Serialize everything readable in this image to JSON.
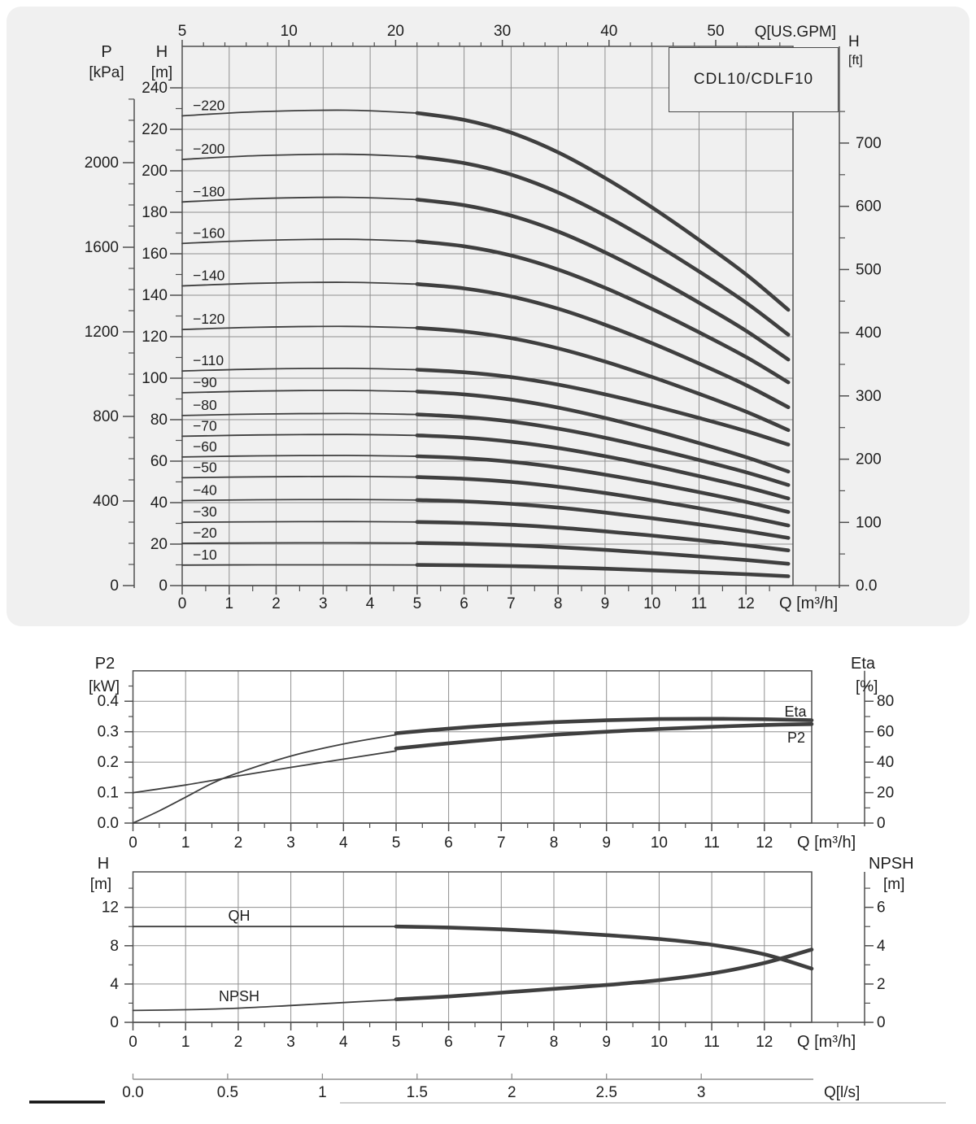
{
  "colors": {
    "page_bg": "#ffffff",
    "panel_bg": "#f0f0f0",
    "grid": "#8f8f8f",
    "axis": "#4f4f4f",
    "curve": "#3f3f3f",
    "text": "#1f1f1f",
    "footer_rule": "#b0b0b0",
    "footer_bar": "#111111"
  },
  "chart_data": [
    {
      "type": "line",
      "id": "multistage-qh",
      "title": "CDL10/CDLF10",
      "xlabel": "Q [m³/h]",
      "top_axis_label": "Q[US.GPM]",
      "x_ticks": [
        0,
        1,
        2,
        3,
        4,
        5,
        6,
        7,
        8,
        9,
        10,
        11,
        12
      ],
      "x_minor_step": 0.5,
      "xlim": [
        0,
        13
      ],
      "ylim_m": [
        0,
        260
      ],
      "grid_step_m": 20,
      "left_axis_pressure": {
        "name": "P",
        "unit": "[kPa]",
        "ticks": [
          0,
          400,
          800,
          1200,
          1600,
          2000
        ],
        "minor_step": 100,
        "axis_max": 2300
      },
      "left_axis_head": {
        "name": "H",
        "unit": "[m]",
        "label_step": 20,
        "minor_step": 10,
        "max_label": 240
      },
      "right_axis_feet": {
        "name": "H",
        "unit": "[ft]",
        "ticks": [
          "0.0",
          "100",
          "200",
          "300",
          "400",
          "500",
          "600",
          "700"
        ],
        "minor_step_ft": 50
      },
      "top_axis_gpm": {
        "labels": [
          5,
          10,
          20,
          30,
          40,
          50
        ],
        "minor_step_gpm": 2,
        "minor_max_gpm": 56,
        "gpm_per_m3h": 4.4029
      },
      "curves": [
        {
          "label": "−220",
          "shutoff_m": 226.5,
          "end_m": 133
        },
        {
          "label": "−200",
          "shutoff_m": 205.5,
          "end_m": 121
        },
        {
          "label": "−180",
          "shutoff_m": 185.0,
          "end_m": 109
        },
        {
          "label": "−160",
          "shutoff_m": 165.0,
          "end_m": 98
        },
        {
          "label": "−140",
          "shutoff_m": 144.5,
          "end_m": 86
        },
        {
          "label": "−120",
          "shutoff_m": 123.5,
          "end_m": 75
        },
        {
          "label": "−110",
          "shutoff_m": 103.5,
          "end_m": 68
        },
        {
          "label": "−90",
          "shutoff_m": 93.0,
          "end_m": 55
        },
        {
          "label": "−80",
          "shutoff_m": 82.0,
          "end_m": 48.5
        },
        {
          "label": "−70",
          "shutoff_m": 72.0,
          "end_m": 42
        },
        {
          "label": "−60",
          "shutoff_m": 62.0,
          "end_m": 35.5
        },
        {
          "label": "−50",
          "shutoff_m": 52.0,
          "end_m": 29
        },
        {
          "label": "−40",
          "shutoff_m": 41.0,
          "end_m": 23
        },
        {
          "label": "−30",
          "shutoff_m": 30.5,
          "end_m": 17
        },
        {
          "label": "−20",
          "shutoff_m": 20.4,
          "end_m": 10.5
        },
        {
          "label": "−10",
          "shutoff_m": 9.9,
          "end_m": 4.5
        }
      ],
      "curve_shape": {
        "peak_q": 3.5,
        "peak_factor": 1.012,
        "q5_factor": 1.006,
        "thick_q": [
          5,
          6,
          7,
          8,
          9,
          10,
          11,
          12,
          12.9
        ],
        "droop_fractions": [
          0,
          0.035,
          0.1,
          0.2,
          0.33,
          0.48,
          0.645,
          0.82,
          1
        ]
      }
    },
    {
      "type": "line",
      "id": "power-efficiency",
      "xlabel": "Q [m³/h]",
      "x_ticks": [
        0,
        1,
        2,
        3,
        4,
        5,
        6,
        7,
        8,
        9,
        10,
        11,
        12
      ],
      "x_minor_step": 0.5,
      "xlim": [
        0,
        12.9
      ],
      "left_axis": {
        "name": "P2",
        "unit": "[kW]",
        "ticks": [
          "0.0",
          "0.1",
          "0.2",
          "0.3",
          "0.4"
        ],
        "minor_step": 0.05,
        "axis_max": 0.5
      },
      "right_axis": {
        "name": "Eta",
        "unit": "[%]",
        "ticks": [
          "0",
          "20",
          "40",
          "60",
          "80"
        ],
        "minor_step": 10
      },
      "series": [
        {
          "name": "P2",
          "axis": "left",
          "curve_label": "P2",
          "points_thin": [
            [
              0,
              0.1
            ],
            [
              1,
              0.125
            ],
            [
              2,
              0.155
            ],
            [
              3,
              0.183
            ],
            [
              4,
              0.21
            ],
            [
              5,
              0.237
            ]
          ],
          "points_thick": [
            [
              5,
              0.245
            ],
            [
              6,
              0.262
            ],
            [
              7,
              0.277
            ],
            [
              8,
              0.29
            ],
            [
              9,
              0.3
            ],
            [
              10,
              0.309
            ],
            [
              11,
              0.316
            ],
            [
              12,
              0.322
            ],
            [
              12.9,
              0.325
            ]
          ]
        },
        {
          "name": "Eta",
          "axis": "right",
          "curve_label": "Eta",
          "points_thin": [
            [
              0,
              0
            ],
            [
              0.5,
              8
            ],
            [
              1,
              17
            ],
            [
              1.5,
              26
            ],
            [
              2,
              33
            ],
            [
              3,
              44
            ],
            [
              4,
              52
            ],
            [
              5,
              58
            ]
          ],
          "points_thick": [
            [
              5,
              59
            ],
            [
              6,
              62
            ],
            [
              7,
              64.5
            ],
            [
              8,
              66.3
            ],
            [
              9,
              67.5
            ],
            [
              10,
              68.3
            ],
            [
              11,
              68.5
            ],
            [
              12,
              68.2
            ],
            [
              12.9,
              67.5
            ]
          ]
        }
      ]
    },
    {
      "type": "line",
      "id": "qh-npsh",
      "xlabel": "Q [m³/h]",
      "x_ticks": [
        0,
        1,
        2,
        3,
        4,
        5,
        6,
        7,
        8,
        9,
        10,
        11,
        12
      ],
      "x_minor_step": 0.5,
      "xlim": [
        0,
        12.9
      ],
      "left_axis": {
        "name": "H",
        "unit": "[m]",
        "ticks": [
          "0",
          "4",
          "8",
          "12"
        ],
        "minor_step": 2,
        "axis_max": 15.7
      },
      "right_axis": {
        "name": "NPSH",
        "unit": "[m]",
        "ticks": [
          "0",
          "2",
          "4",
          "6"
        ],
        "minor_step": 1
      },
      "series": [
        {
          "name": "QH",
          "axis": "left",
          "curve_label": "QH",
          "points_thin": [
            [
              0,
              10
            ],
            [
              2.5,
              10
            ],
            [
              5,
              10
            ]
          ],
          "points_thick": [
            [
              5,
              10
            ],
            [
              6,
              9.9
            ],
            [
              7,
              9.7
            ],
            [
              8,
              9.45
            ],
            [
              9,
              9.1
            ],
            [
              10,
              8.7
            ],
            [
              11,
              8.1
            ],
            [
              12,
              7.1
            ],
            [
              12.9,
              5.6
            ]
          ]
        },
        {
          "name": "NPSH",
          "axis": "right",
          "curve_label": "NPSH",
          "points_thin": [
            [
              0,
              0.62
            ],
            [
              1,
              0.66
            ],
            [
              2,
              0.74
            ],
            [
              3,
              0.88
            ],
            [
              4,
              1.03
            ],
            [
              5,
              1.18
            ]
          ],
          "points_thick": [
            [
              5,
              1.2
            ],
            [
              6,
              1.35
            ],
            [
              7,
              1.55
            ],
            [
              8,
              1.75
            ],
            [
              9,
              1.95
            ],
            [
              10,
              2.2
            ],
            [
              11,
              2.55
            ],
            [
              12,
              3.1
            ],
            [
              12.9,
              3.8
            ]
          ]
        }
      ],
      "bottom_scale": {
        "label": "Q[l/s]",
        "ticks": [
          "0.0",
          "0.5",
          "1",
          "1.5",
          "2",
          "2.5",
          "3"
        ],
        "m3h_per_lps": 3.6
      }
    }
  ]
}
